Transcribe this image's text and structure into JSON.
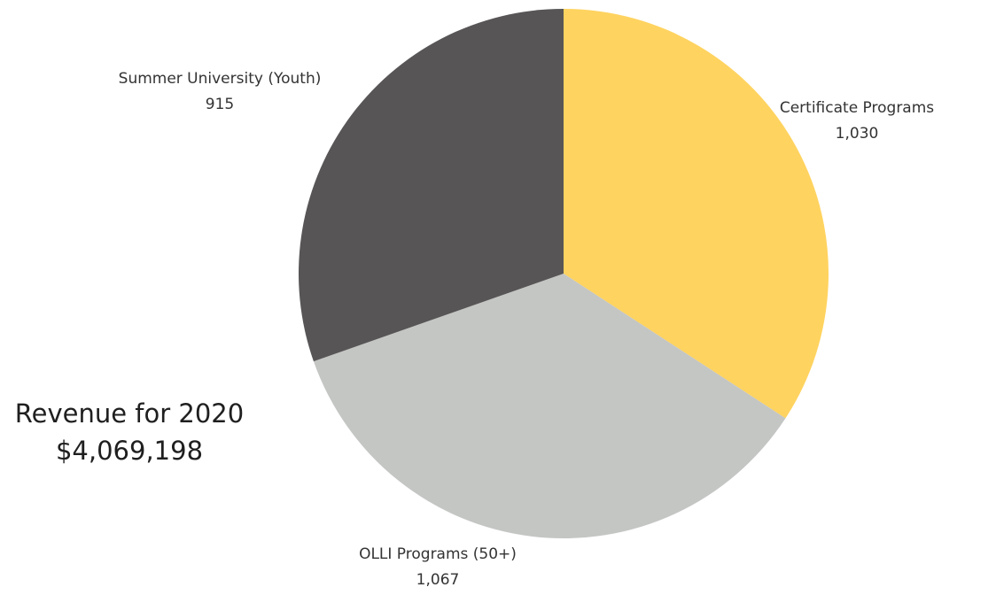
{
  "chart_data": {
    "type": "pie",
    "slices": [
      {
        "label": "Certificate Programs",
        "value": 1030,
        "value_label": "1,030",
        "color": "#FFD35F"
      },
      {
        "label": "OLLI Programs (50+)",
        "value": 1067,
        "value_label": "1,067",
        "color": "#C4C6C4"
      },
      {
        "label": "Summer University (Youth)",
        "value": 915,
        "value_label": "915",
        "color": "#575555"
      }
    ],
    "start": "12 o'clock",
    "direction": "clockwise"
  },
  "summary": {
    "title": "Revenue for 2020",
    "amount": "$4,069,198"
  }
}
